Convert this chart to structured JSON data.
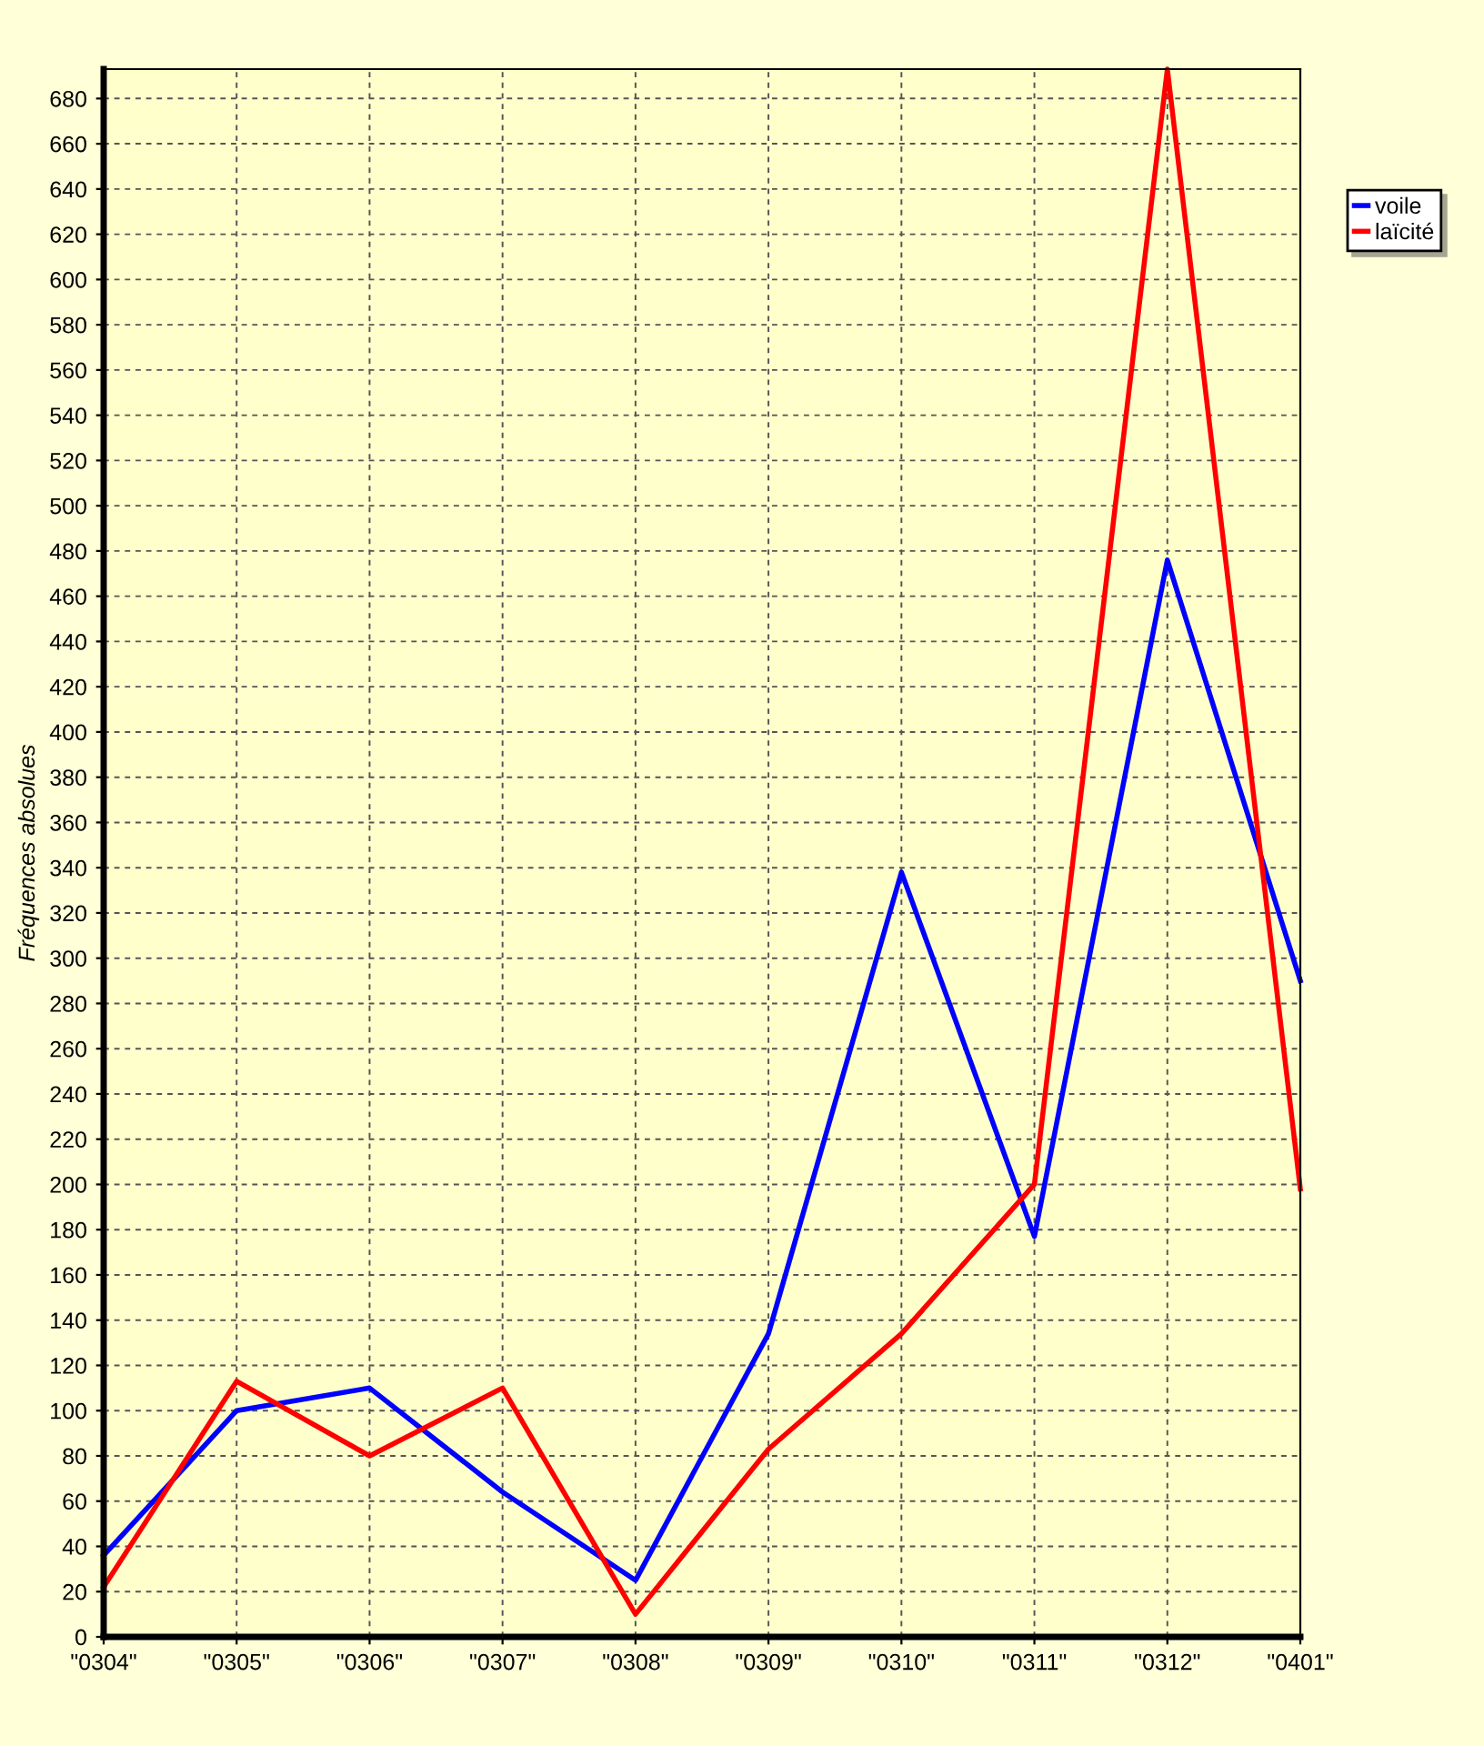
{
  "chart_data": {
    "type": "line",
    "ylabel": "Fréquences absolues",
    "categories": [
      "\"0304\"",
      "\"0305\"",
      "\"0306\"",
      "\"0307\"",
      "\"0308\"",
      "\"0309\"",
      "\"0310\"",
      "\"0311\"",
      "\"0312\"",
      "\"0401\""
    ],
    "series": [
      {
        "name": "voile",
        "color": "#0000ff",
        "values": [
          36,
          100,
          110,
          64,
          25,
          134,
          338,
          177,
          476,
          290
        ]
      },
      {
        "name": "laïcité",
        "color": "#ff0000",
        "values": [
          22,
          113,
          80,
          110,
          10,
          83,
          134,
          200,
          693,
          198
        ]
      }
    ],
    "ylim": [
      0,
      693
    ],
    "yticks": [
      0,
      20,
      40,
      60,
      80,
      100,
      120,
      140,
      160,
      180,
      200,
      220,
      240,
      260,
      280,
      300,
      320,
      340,
      360,
      380,
      400,
      420,
      440,
      460,
      480,
      500,
      520,
      540,
      560,
      580,
      600,
      620,
      640,
      660,
      680
    ],
    "grid": true,
    "legend": "right",
    "marker": "none",
    "line_style": "solid"
  }
}
